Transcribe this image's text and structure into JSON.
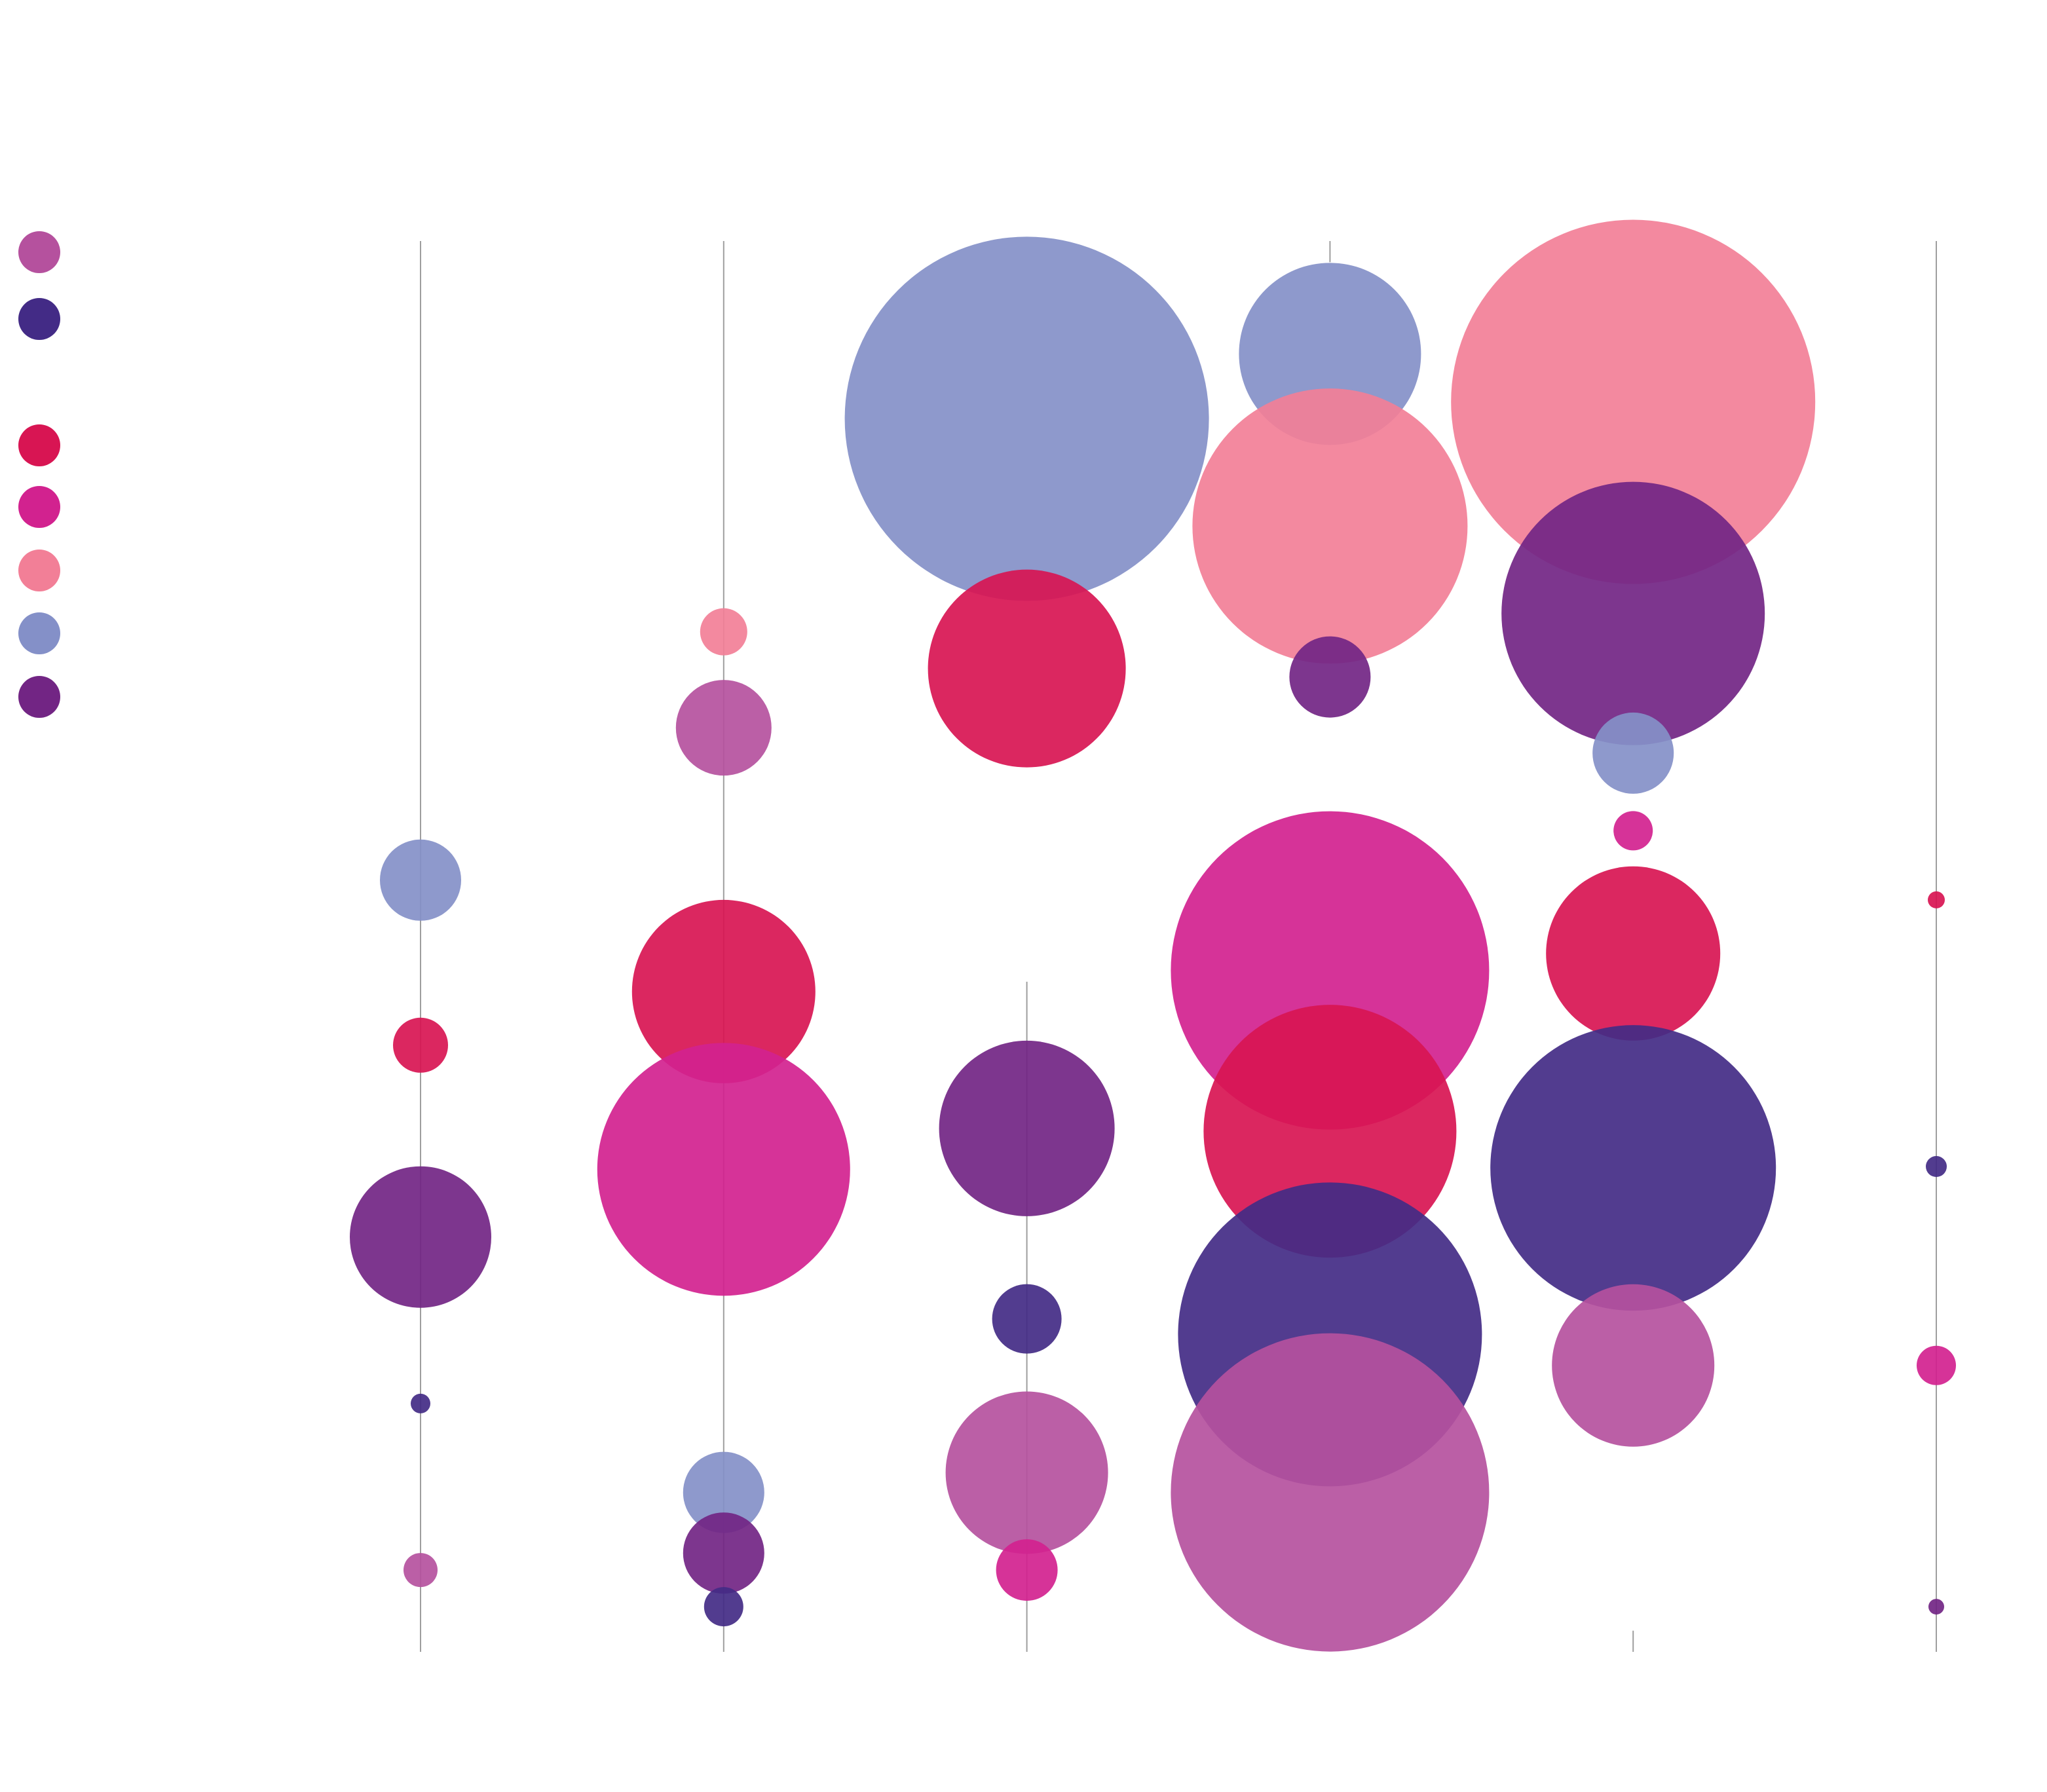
{
  "chart_data": {
    "type": "bubble",
    "title": "",
    "xlabel": "",
    "ylabel": "",
    "colors": {
      "orchid": "#b5519e",
      "indigo": "#432b86",
      "crimson": "#d81553",
      "magenta": "#d2228f",
      "pink": "#f27f97",
      "periwinkle": "#8490c8",
      "purple": "#722584"
    },
    "legend": {
      "position": "top-left",
      "entries": [
        {
          "label": "",
          "color": "orchid"
        },
        {
          "label": "",
          "color": "indigo"
        },
        {
          "label": "",
          "color": "crimson"
        },
        {
          "label": "",
          "color": "magenta"
        },
        {
          "label": "",
          "color": "pink"
        },
        {
          "label": "",
          "color": "periwinkle"
        },
        {
          "label": "",
          "color": "purple"
        }
      ]
    },
    "columns": [
      {
        "x": 1,
        "stem": [
          0.0,
          1.0
        ],
        "bubbles": [
          {
            "y": 0.453,
            "size": 62,
            "color": "periwinkle"
          },
          {
            "y": 0.57,
            "size": 42,
            "color": "crimson"
          },
          {
            "y": 0.706,
            "size": 108,
            "color": "purple"
          },
          {
            "y": 0.824,
            "size": 15,
            "color": "indigo"
          },
          {
            "y": 0.942,
            "size": 26,
            "color": "orchid"
          }
        ]
      },
      {
        "x": 2,
        "stem": [
          0.0,
          1.0
        ],
        "bubbles": [
          {
            "y": 0.277,
            "size": 36,
            "color": "pink"
          },
          {
            "y": 0.345,
            "size": 73,
            "color": "orchid"
          },
          {
            "y": 0.532,
            "size": 140,
            "color": "crimson"
          },
          {
            "y": 0.658,
            "size": 193,
            "color": "magenta"
          },
          {
            "y": 0.887,
            "size": 62,
            "color": "periwinkle"
          },
          {
            "y": 0.93,
            "size": 62,
            "color": "purple"
          },
          {
            "y": 0.968,
            "size": 30,
            "color": "indigo"
          }
        ]
      },
      {
        "x": 3,
        "stem": [
          0.525,
          1.0
        ],
        "bubbles": [
          {
            "y": 0.126,
            "size": 278,
            "color": "periwinkle"
          },
          {
            "y": 0.303,
            "size": 151,
            "color": "crimson"
          },
          {
            "y": 0.629,
            "size": 134,
            "color": "purple"
          },
          {
            "y": 0.764,
            "size": 53,
            "color": "indigo"
          },
          {
            "y": 0.873,
            "size": 124,
            "color": "orchid"
          },
          {
            "y": 0.942,
            "size": 47,
            "color": "magenta"
          }
        ]
      },
      {
        "x": 4,
        "stem": [
          0.0,
          0.015
        ],
        "bubbles": [
          {
            "y": 0.08,
            "size": 139,
            "color": "periwinkle"
          },
          {
            "y": 0.202,
            "size": 210,
            "color": "pink"
          },
          {
            "y": 0.309,
            "size": 62,
            "color": "purple"
          },
          {
            "y": 0.517,
            "size": 243,
            "color": "magenta"
          },
          {
            "y": 0.631,
            "size": 193,
            "color": "crimson"
          },
          {
            "y": 0.775,
            "size": 232,
            "color": "indigo"
          },
          {
            "y": 0.887,
            "size": 243,
            "color": "orchid"
          }
        ]
      },
      {
        "x": 5,
        "stem": [
          0.985,
          1.0
        ],
        "bubbles": [
          {
            "y": 0.114,
            "size": 278,
            "color": "pink"
          },
          {
            "y": 0.264,
            "size": 201,
            "color": "purple"
          },
          {
            "y": 0.363,
            "size": 62,
            "color": "periwinkle"
          },
          {
            "y": 0.418,
            "size": 30,
            "color": "magenta"
          },
          {
            "y": 0.505,
            "size": 133,
            "color": "crimson"
          },
          {
            "y": 0.657,
            "size": 218,
            "color": "indigo"
          },
          {
            "y": 0.797,
            "size": 124,
            "color": "orchid"
          }
        ]
      },
      {
        "x": 6,
        "stem": [
          0.0,
          1.0
        ],
        "bubbles": [
          {
            "y": 0.467,
            "size": 13,
            "color": "crimson"
          },
          {
            "y": 0.656,
            "size": 16,
            "color": "indigo"
          },
          {
            "y": 0.797,
            "size": 30,
            "color": "magenta"
          },
          {
            "y": 0.968,
            "size": 12,
            "color": "purple"
          }
        ]
      }
    ]
  }
}
